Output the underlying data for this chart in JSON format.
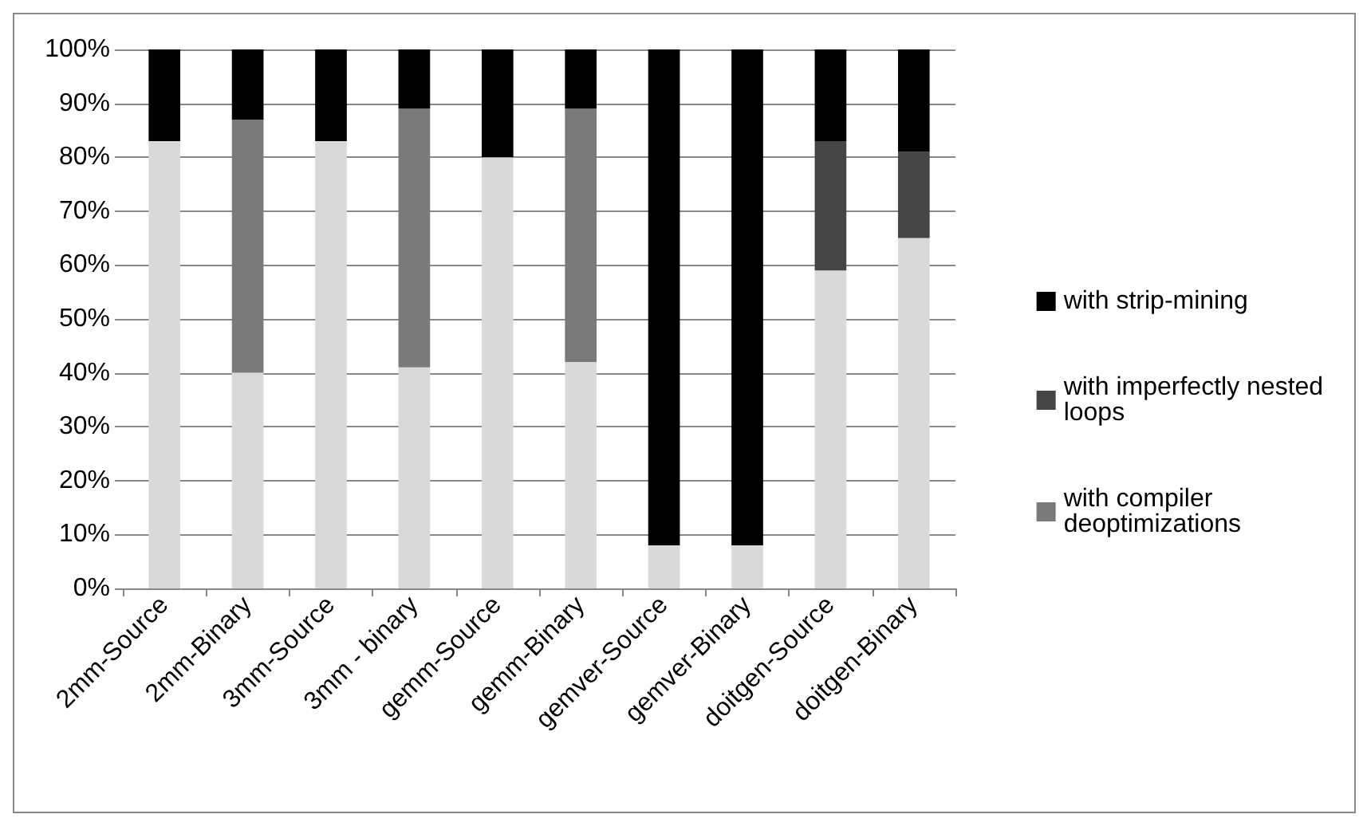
{
  "chart_data": {
    "type": "bar",
    "stacked": true,
    "categories": [
      "2mm-Source",
      "2mm-Binary",
      "3mm-Source",
      "3mm - binary",
      "gemm-Source",
      "gemm-Binary",
      "gemver-Source",
      "gemver-Binary",
      "doitgen-Source",
      "doitgen-Binary"
    ],
    "series": [
      {
        "color": "#d9d9d9",
        "values": [
          83,
          40,
          83,
          41,
          80,
          42,
          8,
          8,
          59,
          65
        ]
      },
      {
        "name": "with compiler deoptimizations",
        "color": "#7a7a7a",
        "values": [
          0,
          47,
          0,
          48,
          0,
          47,
          0,
          0,
          0,
          0
        ]
      },
      {
        "name": "with imperfectly nested loops",
        "color": "#454545",
        "values": [
          0,
          0,
          0,
          0,
          0,
          0,
          0,
          0,
          24,
          16
        ]
      },
      {
        "name": "with strip-mining",
        "color": "#000000",
        "values": [
          17,
          13,
          17,
          11,
          20,
          11,
          92,
          92,
          17,
          19
        ]
      }
    ],
    "ylim": [
      0,
      100
    ],
    "yticks": [
      {
        "value": 0,
        "label": "0%"
      },
      {
        "value": 10,
        "label": "10%"
      },
      {
        "value": 20,
        "label": "20%"
      },
      {
        "value": 30,
        "label": "30%"
      },
      {
        "value": 40,
        "label": "40%"
      },
      {
        "value": 50,
        "label": "50%"
      },
      {
        "value": 60,
        "label": "60%"
      },
      {
        "value": 70,
        "label": "70%"
      },
      {
        "value": 80,
        "label": "80%"
      },
      {
        "value": 90,
        "label": "90%"
      },
      {
        "value": 100,
        "label": "100%"
      }
    ],
    "grid": "y",
    "legend": "right"
  }
}
